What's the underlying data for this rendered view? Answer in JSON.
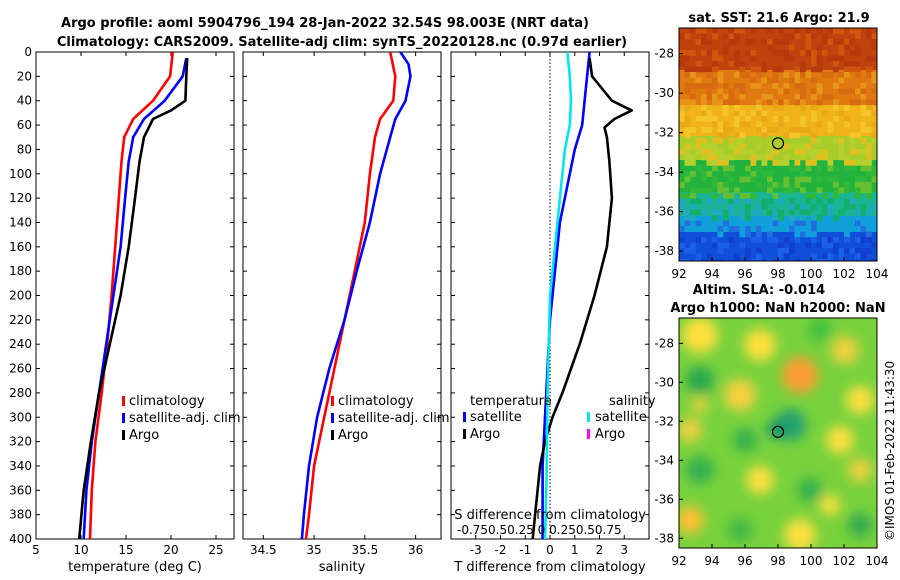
{
  "header": {
    "line1": "Argo profile: aoml 5904796_194 28-Jan-2022 32.54S 98.003E (NRT data)",
    "line2": "Climatology: CARS2009. Satellite-adj clim: synTS_20220128.nc (0.97d earlier)"
  },
  "colors": {
    "climatology": "#ff0000",
    "satellite": "#0000ff",
    "argo": "#000000",
    "sat_salinity": "#00e5ee",
    "argo_salinity": "#ff00ff"
  },
  "depth_axis": {
    "ticks": [
      "0",
      "20",
      "40",
      "60",
      "80",
      "100",
      "120",
      "140",
      "160",
      "180",
      "200",
      "220",
      "240",
      "260",
      "280",
      "300",
      "320",
      "340",
      "360",
      "380",
      "400"
    ]
  },
  "chart_data": [
    {
      "type": "line",
      "name": "temperature-profile",
      "xlabel": "temperature (deg C)",
      "xlim": [
        5,
        27
      ],
      "ylim": [
        400,
        0
      ],
      "xticks": [
        "5",
        "10",
        "15",
        "20",
        "25"
      ],
      "legend": [
        "climatology",
        "satellite-adj. clim",
        "Argo"
      ],
      "series": [
        {
          "name": "climatology",
          "color": "#ff0000",
          "depth": [
            0,
            20,
            40,
            55,
            70,
            90,
            120,
            160,
            200,
            240,
            280,
            320,
            360,
            400
          ],
          "values": [
            20.2,
            19.9,
            18.0,
            15.8,
            14.8,
            14.5,
            14.2,
            13.8,
            13.4,
            12.9,
            12.3,
            11.6,
            11.2,
            11.0
          ]
        },
        {
          "name": "satellite-adj. clim",
          "color": "#0000ff",
          "depth": [
            5,
            20,
            40,
            55,
            70,
            90,
            120,
            160,
            200,
            240,
            280,
            320,
            360,
            400
          ],
          "values": [
            21.7,
            21.3,
            19.3,
            17.0,
            15.8,
            15.3,
            14.9,
            14.4,
            13.6,
            12.8,
            12.0,
            11.2,
            10.6,
            10.3
          ]
        },
        {
          "name": "Argo",
          "color": "#000000",
          "depth": [
            5,
            20,
            40,
            48,
            55,
            70,
            90,
            120,
            160,
            200,
            240,
            280,
            320,
            340,
            360,
            400
          ],
          "values": [
            21.8,
            21.7,
            21.6,
            20.0,
            18.0,
            17.0,
            16.5,
            16.0,
            15.3,
            14.4,
            13.2,
            12.0,
            11.1,
            10.7,
            10.3,
            9.8
          ]
        }
      ]
    },
    {
      "type": "line",
      "name": "salinity-profile",
      "xlabel": "salinity",
      "xlim": [
        34.3,
        36.25
      ],
      "ylim": [
        400,
        0
      ],
      "xticks": [
        "34.5",
        "35",
        "35.5",
        "36"
      ],
      "legend": [
        "climatology",
        "satellite-adj. clim",
        "Argo"
      ],
      "series": [
        {
          "name": "climatology",
          "color": "#ff0000",
          "depth": [
            0,
            20,
            40,
            55,
            70,
            100,
            140,
            180,
            220,
            260,
            300,
            340,
            380,
            400
          ],
          "values": [
            35.75,
            35.8,
            35.78,
            35.65,
            35.6,
            35.55,
            35.5,
            35.4,
            35.3,
            35.2,
            35.1,
            35.0,
            34.95,
            34.92
          ]
        },
        {
          "name": "satellite-adj. clim",
          "color": "#0000ff",
          "depth": [
            0,
            10,
            20,
            40,
            55,
            70,
            100,
            140,
            180,
            220,
            260,
            300,
            340,
            380,
            400
          ],
          "values": [
            35.85,
            35.93,
            35.95,
            35.9,
            35.8,
            35.75,
            35.65,
            35.55,
            35.42,
            35.3,
            35.15,
            35.03,
            34.95,
            34.9,
            34.88
          ]
        }
      ]
    },
    {
      "type": "line",
      "name": "difference-profile",
      "xlabel": "T difference from climatology",
      "xlim": [
        -4,
        4
      ],
      "ylim": [
        400,
        0
      ],
      "xticks": [
        "-3",
        "-2",
        "-1",
        "0",
        "1",
        "2",
        "3"
      ],
      "top_label": "S difference from climatology",
      "top_ticks": "-0.750.50.25 0  0.250.50.75",
      "legend_temperature_title": "temperature",
      "legend_salinity_title": "salinity",
      "legend_temperature": [
        "satellite",
        "Argo"
      ],
      "legend_salinity": [
        "satellite",
        "Argo"
      ],
      "series": [
        {
          "name": "satellite",
          "color": "#0000ff",
          "depth": [
            0,
            20,
            40,
            60,
            80,
            100,
            140,
            180,
            220,
            260,
            300,
            340,
            380,
            400
          ],
          "values": [
            1.6,
            1.5,
            1.4,
            1.3,
            1.0,
            0.8,
            0.4,
            0.2,
            0.0,
            -0.1,
            -0.2,
            -0.3,
            -0.3,
            -0.3
          ]
        },
        {
          "name": "Argo",
          "color": "#000000",
          "depth": [
            5,
            20,
            40,
            48,
            55,
            62,
            70,
            90,
            120,
            160,
            200,
            240,
            280,
            300,
            320,
            340,
            380,
            400
          ],
          "values": [
            1.6,
            1.7,
            2.5,
            3.3,
            2.6,
            2.2,
            2.3,
            2.4,
            2.5,
            2.3,
            1.8,
            1.2,
            0.5,
            0.1,
            -0.2,
            -0.4,
            -0.6,
            -0.7
          ]
        },
        {
          "name": "satellite salinity",
          "color": "#00e5ee",
          "depth": [
            0,
            20,
            40,
            60,
            80,
            120,
            160,
            200,
            240,
            280,
            320,
            360,
            400
          ],
          "values": [
            0.7,
            0.8,
            0.85,
            0.8,
            0.6,
            0.4,
            0.2,
            0.0,
            -0.05,
            -0.1,
            -0.12,
            -0.15,
            -0.2
          ]
        }
      ]
    },
    {
      "type": "heatmap",
      "name": "sst-map",
      "title": "sat. SST: 21.6 Argo: 21.9",
      "xlim": [
        92,
        104
      ],
      "ylim": [
        -38.5,
        -26.7
      ],
      "xticks": [
        "92",
        "94",
        "96",
        "98",
        "100",
        "102",
        "104"
      ],
      "yticks": [
        "-28",
        "-30",
        "-32",
        "-34",
        "-36",
        "-38"
      ],
      "marker": {
        "lon": 98.0,
        "lat": -32.54
      }
    },
    {
      "type": "heatmap",
      "name": "sla-map",
      "title_line1": "Altim. SLA: -0.014",
      "title_line2": "Argo h1000: NaN h2000: NaN",
      "xlim": [
        92,
        104
      ],
      "ylim": [
        -38.5,
        -26.7
      ],
      "xticks": [
        "92",
        "94",
        "96",
        "98",
        "100",
        "102",
        "104"
      ],
      "yticks": [
        "-28",
        "-30",
        "-32",
        "-34",
        "-36",
        "-38"
      ],
      "marker": {
        "lon": 98.0,
        "lat": -32.54
      }
    }
  ],
  "footer": {
    "stamp": "©IMOS 01-Feb-2022 11:43:30"
  }
}
